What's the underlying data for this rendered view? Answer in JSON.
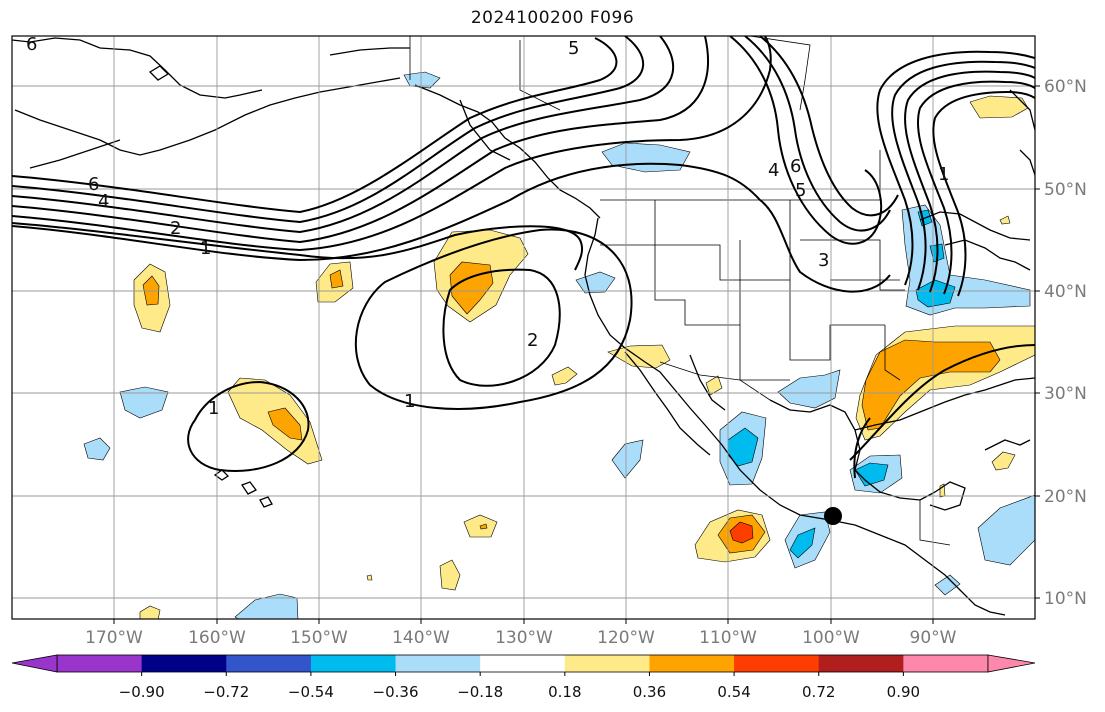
{
  "title": "2024100200 F096",
  "map": {
    "lon_labels": [
      "170°W",
      "160°W",
      "150°W",
      "140°W",
      "130°W",
      "120°W",
      "110°W",
      "100°W",
      "90°W"
    ],
    "lat_labels": [
      "60°N",
      "50°N",
      "40°N",
      "30°N",
      "20°N",
      "10°N"
    ],
    "contour_labels": [
      "6",
      "5",
      "6",
      "4",
      "2",
      "1",
      "4",
      "6",
      "5",
      "1",
      "2",
      "1",
      "1",
      "3"
    ],
    "marker": "station-dot"
  },
  "colorbar": {
    "tick_labels": [
      "−0.90",
      "−0.72",
      "−0.54",
      "−0.36",
      "−0.18",
      "0.18",
      "0.36",
      "0.54",
      "0.72",
      "0.90"
    ],
    "colors": [
      "#9a35cc",
      "#000088",
      "#3355cc",
      "#00bbee",
      "#aaddfa",
      "#ffffff",
      "#feea88",
      "#fea400",
      "#fe3d00",
      "#b01e1e",
      "#fe87ac"
    ]
  },
  "colors": {
    "light_blue": "#aaddfa",
    "blue": "#00bbee",
    "yellow": "#feea88",
    "orange": "#fea400",
    "red": "#fe3d00"
  }
}
